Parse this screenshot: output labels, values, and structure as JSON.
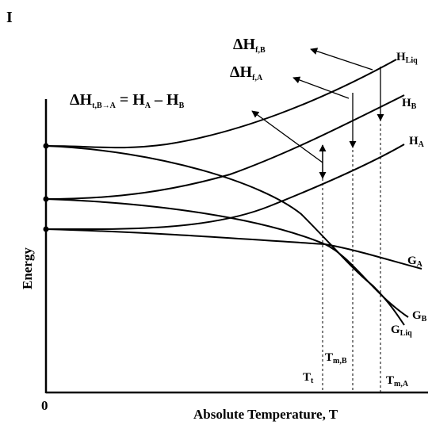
{
  "panel_label": "I",
  "axes": {
    "y_label": "Energy",
    "x_label": "Absolute Temperature, T",
    "origin_label": "0"
  },
  "curves": {
    "H_liq": {
      "main": "H",
      "sub": "Liq"
    },
    "H_B": {
      "main": "H",
      "sub": "B"
    },
    "H_A": {
      "main": "H",
      "sub": "A"
    },
    "G_A": {
      "main": "G",
      "sub": "A"
    },
    "G_B": {
      "main": "G",
      "sub": "B"
    },
    "G_liq": {
      "main": "G",
      "sub": "Liq"
    }
  },
  "annotations": {
    "dH_fB": {
      "main": "ΔH",
      "sub": "f,B"
    },
    "dH_fA": {
      "main": "ΔH",
      "sub": "f,A"
    },
    "dH_tBA": {
      "main": "ΔH",
      "sub": "t,B→A",
      "rhs": " = H",
      "rhs_sub1": "A",
      "rhs_mid": " – H",
      "rhs_sub2": "B"
    }
  },
  "temperatures": {
    "T_t": {
      "main": "T",
      "sub": "t"
    },
    "T_mB": {
      "main": "T",
      "sub": "m,B"
    },
    "T_mA": {
      "main": "T",
      "sub": "m,A"
    }
  }
}
